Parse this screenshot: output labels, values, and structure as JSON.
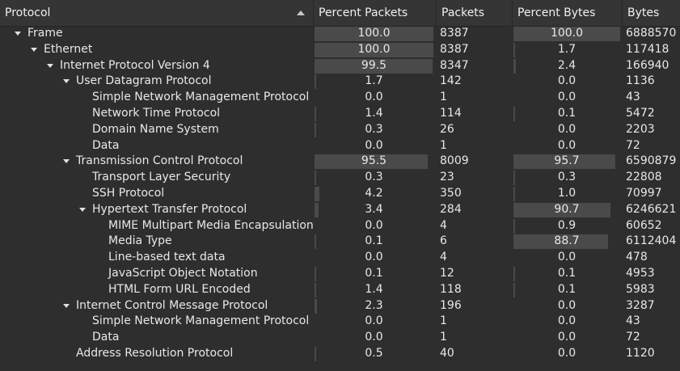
{
  "columns": {
    "protocol": "Protocol",
    "percent_packets": "Percent Packets",
    "packets": "Packets",
    "percent_bytes": "Percent Bytes",
    "bytes": "Bytes"
  },
  "rows": [
    {
      "depth": 0,
      "expanded": true,
      "name": "Frame",
      "pct_packets": "100.0",
      "packets": "8387",
      "pct_bytes": "100.0",
      "bytes": "6888570"
    },
    {
      "depth": 1,
      "expanded": true,
      "name": "Ethernet",
      "pct_packets": "100.0",
      "packets": "8387",
      "pct_bytes": "1.7",
      "bytes": "117418"
    },
    {
      "depth": 2,
      "expanded": true,
      "name": "Internet Protocol Version 4",
      "pct_packets": "99.5",
      "packets": "8347",
      "pct_bytes": "2.4",
      "bytes": "166940"
    },
    {
      "depth": 3,
      "expanded": true,
      "name": "User Datagram Protocol",
      "pct_packets": "1.7",
      "packets": "142",
      "pct_bytes": "0.0",
      "bytes": "1136"
    },
    {
      "depth": 4,
      "expanded": false,
      "name": "Simple Network Management Protocol",
      "pct_packets": "0.0",
      "packets": "1",
      "pct_bytes": "0.0",
      "bytes": "43"
    },
    {
      "depth": 4,
      "expanded": false,
      "name": "Network Time Protocol",
      "pct_packets": "1.4",
      "packets": "114",
      "pct_bytes": "0.1",
      "bytes": "5472"
    },
    {
      "depth": 4,
      "expanded": false,
      "name": "Domain Name System",
      "pct_packets": "0.3",
      "packets": "26",
      "pct_bytes": "0.0",
      "bytes": "2203"
    },
    {
      "depth": 4,
      "expanded": false,
      "name": "Data",
      "pct_packets": "0.0",
      "packets": "1",
      "pct_bytes": "0.0",
      "bytes": "72"
    },
    {
      "depth": 3,
      "expanded": true,
      "name": "Transmission Control Protocol",
      "pct_packets": "95.5",
      "packets": "8009",
      "pct_bytes": "95.7",
      "bytes": "6590879"
    },
    {
      "depth": 4,
      "expanded": false,
      "name": "Transport Layer Security",
      "pct_packets": "0.3",
      "packets": "23",
      "pct_bytes": "0.3",
      "bytes": "22808"
    },
    {
      "depth": 4,
      "expanded": false,
      "name": "SSH Protocol",
      "pct_packets": "4.2",
      "packets": "350",
      "pct_bytes": "1.0",
      "bytes": "70997"
    },
    {
      "depth": 4,
      "expanded": true,
      "name": "Hypertext Transfer Protocol",
      "pct_packets": "3.4",
      "packets": "284",
      "pct_bytes": "90.7",
      "bytes": "6246621"
    },
    {
      "depth": 5,
      "expanded": false,
      "name": "MIME Multipart Media Encapsulation",
      "pct_packets": "0.0",
      "packets": "4",
      "pct_bytes": "0.9",
      "bytes": "60652"
    },
    {
      "depth": 5,
      "expanded": false,
      "name": "Media Type",
      "pct_packets": "0.1",
      "packets": "6",
      "pct_bytes": "88.7",
      "bytes": "6112404"
    },
    {
      "depth": 5,
      "expanded": false,
      "name": "Line-based text data",
      "pct_packets": "0.0",
      "packets": "4",
      "pct_bytes": "0.0",
      "bytes": "478"
    },
    {
      "depth": 5,
      "expanded": false,
      "name": "JavaScript Object Notation",
      "pct_packets": "0.1",
      "packets": "12",
      "pct_bytes": "0.1",
      "bytes": "4953"
    },
    {
      "depth": 5,
      "expanded": false,
      "name": "HTML Form URL Encoded",
      "pct_packets": "1.4",
      "packets": "118",
      "pct_bytes": "0.1",
      "bytes": "5983"
    },
    {
      "depth": 3,
      "expanded": true,
      "name": "Internet Control Message Protocol",
      "pct_packets": "2.3",
      "packets": "196",
      "pct_bytes": "0.0",
      "bytes": "3287"
    },
    {
      "depth": 4,
      "expanded": false,
      "name": "Simple Network Management Protocol",
      "pct_packets": "0.0",
      "packets": "1",
      "pct_bytes": "0.0",
      "bytes": "43"
    },
    {
      "depth": 4,
      "expanded": false,
      "name": "Data",
      "pct_packets": "0.0",
      "packets": "1",
      "pct_bytes": "0.0",
      "bytes": "72"
    },
    {
      "depth": 3,
      "expanded": false,
      "name": "Address Resolution Protocol",
      "pct_packets": "0.5",
      "packets": "40",
      "pct_bytes": "0.0",
      "bytes": "1120"
    }
  ],
  "icons": {
    "sort": "sort-ascending-icon",
    "expand": "expanded-arrow-icon"
  },
  "colors": {
    "background": "#2e2e2e",
    "header": "#353535",
    "bar": "#4a4a4a",
    "text": "#e8e8e8"
  }
}
